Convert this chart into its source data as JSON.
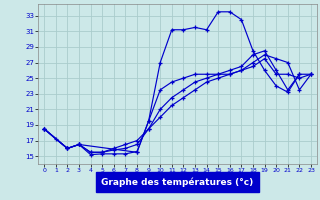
{
  "xlabel": "Graphe des températures (°c)",
  "bg_color": "#cce8e8",
  "grid_color": "#aacccc",
  "line_color": "#0000cc",
  "xlim": [
    -0.5,
    23.5
  ],
  "ylim": [
    14.0,
    34.5
  ],
  "ytick_vals": [
    15,
    17,
    19,
    21,
    23,
    25,
    27,
    29,
    31,
    33
  ],
  "xtick_vals": [
    0,
    1,
    2,
    3,
    4,
    5,
    6,
    7,
    8,
    9,
    10,
    11,
    12,
    13,
    14,
    15,
    16,
    17,
    18,
    19,
    20,
    21,
    22,
    23
  ],
  "s1_x": [
    0,
    1,
    2,
    3,
    4,
    5,
    6,
    7,
    8,
    9,
    10,
    11,
    12,
    13,
    14,
    15,
    16,
    17,
    18,
    19,
    20,
    21,
    22
  ],
  "s1_y": [
    18.5,
    17.2,
    16.0,
    16.5,
    15.2,
    15.3,
    15.3,
    15.3,
    15.6,
    19.5,
    27.0,
    31.2,
    31.2,
    31.5,
    31.2,
    33.5,
    33.5,
    32.5,
    28.5,
    26.0,
    24.0,
    23.2,
    25.5
  ],
  "s2_x": [
    0,
    2,
    3,
    8,
    9,
    10,
    11,
    12,
    13,
    14,
    15,
    16,
    17,
    18,
    19,
    20,
    21,
    22,
    23
  ],
  "s2_y": [
    18.5,
    16.0,
    16.5,
    15.5,
    19.5,
    23.5,
    24.5,
    25.0,
    25.5,
    25.5,
    25.5,
    26.0,
    26.5,
    28.0,
    28.5,
    26.0,
    23.5,
    25.5,
    25.5
  ],
  "s3_x": [
    0,
    2,
    3,
    4,
    5,
    6,
    7,
    8,
    9,
    10,
    11,
    12,
    13,
    14,
    15,
    16,
    17,
    18,
    19,
    20,
    21,
    22,
    23
  ],
  "s3_y": [
    18.5,
    16.0,
    16.5,
    15.5,
    15.5,
    16.0,
    16.5,
    17.0,
    18.5,
    20.0,
    21.5,
    22.5,
    23.5,
    24.5,
    25.0,
    25.5,
    26.0,
    27.0,
    28.0,
    27.5,
    27.0,
    23.5,
    25.5
  ],
  "s4_x": [
    0,
    2,
    3,
    4,
    5,
    6,
    7,
    8,
    9,
    10,
    11,
    12,
    13,
    14,
    15,
    16,
    17,
    18,
    19,
    20,
    21,
    22,
    23
  ],
  "s4_y": [
    18.5,
    16.0,
    16.5,
    15.5,
    15.5,
    15.8,
    16.0,
    16.5,
    18.5,
    21.0,
    22.5,
    23.5,
    24.5,
    25.0,
    25.5,
    25.5,
    26.0,
    26.5,
    27.5,
    25.5,
    25.5,
    25.0,
    25.5
  ]
}
